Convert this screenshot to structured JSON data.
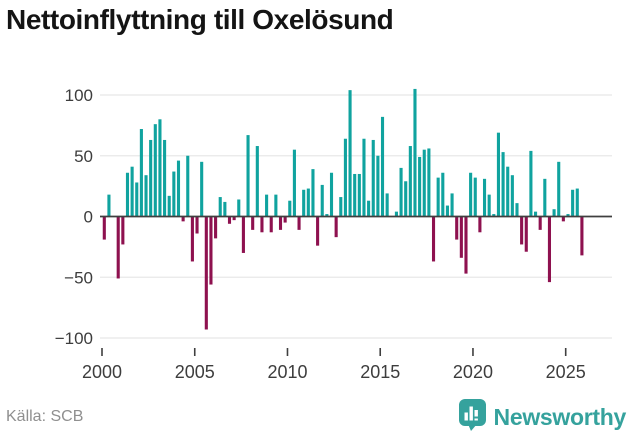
{
  "title": "Nettoinflyttning till Oxelösund",
  "footer": {
    "source_label": "Källa: SCB",
    "brand": "Newsworthy"
  },
  "colors": {
    "positive_bar": "#10a39f",
    "negative_bar": "#8e114f",
    "gridline": "#e8e8e8",
    "zero_line": "#3f3f3f",
    "axis_text": "#3d3d3d",
    "title_text": "#141414",
    "source_text": "#8f8f8f",
    "brand_teal": "#35a29d"
  },
  "chart_data": {
    "type": "bar",
    "title": "Nettoinflyttning till Oxelösund",
    "xlabel": "",
    "ylabel": "",
    "frequency": "quarterly",
    "start_period": "2000 Q1",
    "n_bars": 104,
    "x_tick_labels": [
      "2000",
      "2005",
      "2010",
      "2015",
      "2020",
      "2025"
    ],
    "y_ticks": [
      100,
      50,
      0,
      -50,
      -100
    ],
    "y_tick_labels": [
      "100",
      "50",
      "0",
      "−50",
      "−100"
    ],
    "ylim": [
      -100,
      100
    ],
    "grid": "horizontal",
    "legend": "none",
    "values": [
      -19,
      18,
      0,
      -51,
      -23,
      36,
      41,
      28,
      72,
      34,
      63,
      76,
      80,
      63,
      17,
      37,
      46,
      -4,
      50,
      -37,
      -14,
      45,
      -93,
      -56,
      -18,
      16,
      12,
      -6,
      -3,
      14,
      -30,
      67,
      -11,
      58,
      -13,
      18,
      -13,
      18,
      -11,
      -5,
      13,
      55,
      -11,
      22,
      23,
      39,
      -24,
      26,
      2,
      36,
      -17,
      16,
      64,
      104,
      35,
      35,
      64,
      13,
      63,
      50,
      82,
      19,
      0,
      4,
      40,
      29,
      58,
      105,
      49,
      55,
      56,
      -37,
      32,
      36,
      9,
      19,
      -19,
      -34,
      -47,
      36,
      32,
      -13,
      31,
      18,
      2,
      69,
      53,
      41,
      34,
      11,
      -23,
      -29,
      54,
      4,
      -11,
      31,
      -54,
      6,
      45,
      -4,
      2,
      22,
      23,
      -32
    ],
    "years_of_values": [
      2000,
      2001,
      2002,
      2003,
      2004,
      2005,
      2006,
      2007,
      2008,
      2009,
      2010,
      2011,
      2012,
      2013,
      2014,
      2015,
      2016,
      2017,
      2018,
      2019,
      2020,
      2021,
      2022,
      2023,
      2024,
      2025
    ]
  }
}
